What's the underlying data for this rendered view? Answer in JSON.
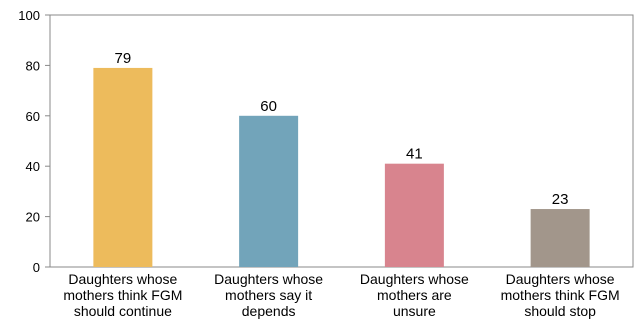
{
  "chart_data": {
    "type": "bar",
    "title": "",
    "xlabel": "",
    "ylabel": "",
    "ylim": [
      0,
      100
    ],
    "yticks": [
      0,
      20,
      40,
      60,
      80,
      100
    ],
    "grid": false,
    "data_labels": true,
    "categories": [
      [
        "Daughters whose",
        "mothers think FGM",
        "should continue"
      ],
      [
        "Daughters whose",
        "mothers say it",
        "depends"
      ],
      [
        "Daughters whose",
        "mothers are",
        "unsure"
      ],
      [
        "Daughters whose",
        "mothers think FGM",
        "should stop"
      ]
    ],
    "values": [
      79,
      60,
      41,
      23
    ],
    "colors": [
      "#EDBB5C",
      "#72A4BA",
      "#D8848E",
      "#A2968B"
    ]
  }
}
